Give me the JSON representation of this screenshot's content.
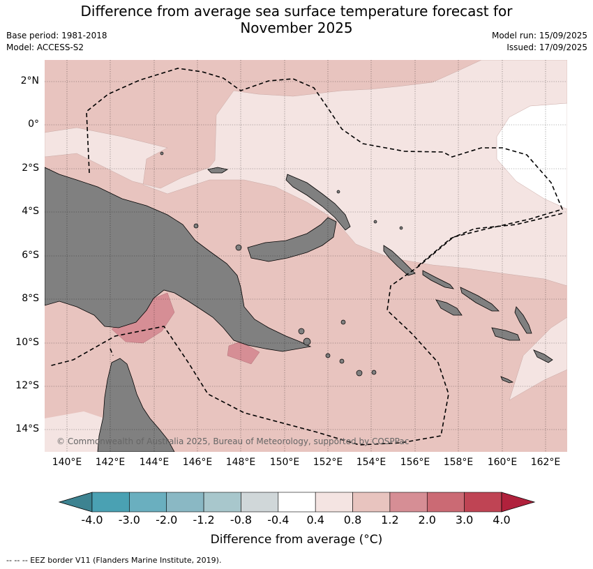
{
  "title_line1": "Difference from average sea surface temperature forecast for",
  "title_line2": "November 2025",
  "base_period": "Base period: 1981-2018",
  "model": "Model: ACCESS-S2",
  "model_run": "Model run: 15/09/2025",
  "issued": "Issued: 17/09/2025",
  "credit": "© Commonwealth of Australia 2025, Bureau of Meteorology, supported by COSPPac",
  "lat_labels": [
    "2°N",
    "0°",
    "2°S",
    "4°S",
    "6°S",
    "8°S",
    "10°S",
    "12°S",
    "14°S"
  ],
  "lon_labels": [
    "140°E",
    "142°E",
    "144°E",
    "146°E",
    "148°E",
    "150°E",
    "152°E",
    "154°E",
    "156°E",
    "158°E",
    "160°E",
    "162°E"
  ],
  "colorbar": {
    "label": "Difference from average (°C)",
    "ticks": [
      "-4.0",
      "-3.0",
      "-2.0",
      "-1.2",
      "-0.8",
      "-0.4",
      "0.4",
      "0.8",
      "1.2",
      "2.0",
      "3.0",
      "4.0"
    ],
    "colors": [
      "#3d8391",
      "#4aa1b3",
      "#6aafbf",
      "#8ab8c4",
      "#a8c7cc",
      "#d0d7d9",
      "#ffffff",
      "#f4e4e2",
      "#e8c4bf",
      "#d68e95",
      "#cb6a74",
      "#bf4454",
      "#b0213c"
    ]
  },
  "colors": {
    "land": "#808080",
    "anom_0_4_0_8": "#f4e4e2",
    "anom_0_8_1_2": "#e8c4bf",
    "anom_1_2_2_0": "#d68e95",
    "neutral": "#ffffff"
  },
  "footer": "--  --  -- EEZ border V11 (Flanders Marine Institute, 2019)."
}
